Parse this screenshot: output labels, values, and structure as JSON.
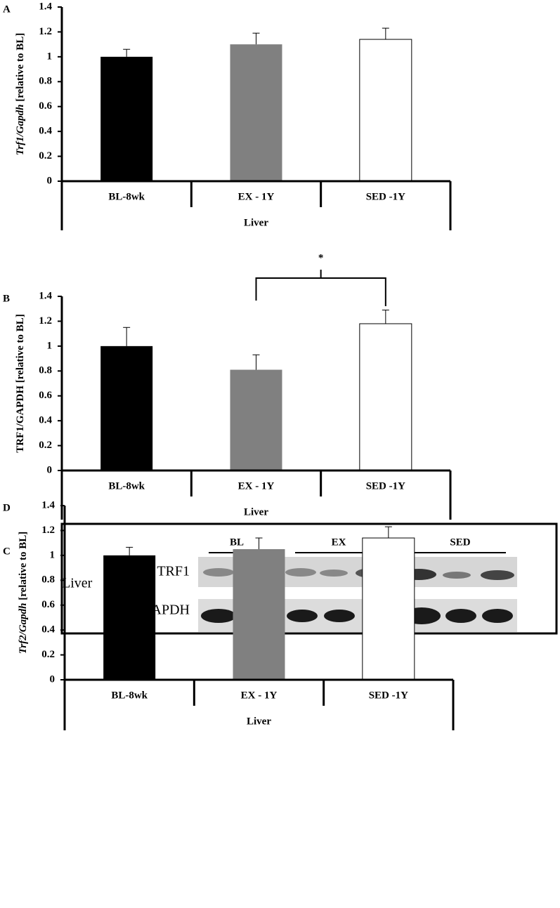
{
  "chart_data": [
    {
      "type": "bar",
      "label": "A",
      "ylabel_italic": "Trf1/Gapdh",
      "ylabel": "[relative to BL]",
      "categories": [
        "BL-8wk",
        "EX - 1Y",
        "SED -1Y"
      ],
      "xlabel": "Liver",
      "values": [
        1.0,
        1.1,
        1.14
      ],
      "errors": [
        0.06,
        0.09,
        0.09
      ],
      "colors": [
        "#000000",
        "#808080",
        "#ffffff"
      ],
      "ylim": [
        0,
        1.4
      ],
      "yticks": [
        0,
        0.2,
        0.4,
        0.6,
        0.8,
        1,
        1.2,
        1.4
      ]
    },
    {
      "type": "bar",
      "label": "B",
      "ylabel": "TRF1/GAPDH [relative to BL]",
      "categories": [
        "BL-8wk",
        "EX - 1Y",
        "SED -1Y"
      ],
      "xlabel": "Liver",
      "values": [
        1.0,
        0.81,
        1.18
      ],
      "errors": [
        0.15,
        0.12,
        0.11
      ],
      "colors": [
        "#000000",
        "#808080",
        "#ffffff"
      ],
      "annotation": "*",
      "ylim": [
        0,
        1.4
      ],
      "yticks": [
        0,
        0.2,
        0.4,
        0.6,
        0.8,
        1,
        1.2,
        1.4
      ]
    },
    {
      "type": "bar",
      "label": "D",
      "ylabel_italic": "Trf2/Gapdh",
      "ylabel": "[relative to BL]",
      "categories": [
        "BL-8wk",
        "EX - 1Y",
        "SED -1Y"
      ],
      "xlabel": "Liver",
      "values": [
        1.0,
        1.05,
        1.14
      ],
      "errors": [
        0.065,
        0.09,
        0.09
      ],
      "colors": [
        "#000000",
        "#808080",
        "#ffffff"
      ],
      "ylim": [
        0,
        1.4
      ],
      "yticks": [
        0,
        0.2,
        0.4,
        0.6,
        0.8,
        1,
        1.2,
        1.4
      ]
    }
  ],
  "blot": {
    "label": "C",
    "tissue": "Liver",
    "groups": [
      "BL",
      "EX",
      "SED"
    ],
    "rows": [
      "TRF1",
      "GAPDH"
    ]
  }
}
